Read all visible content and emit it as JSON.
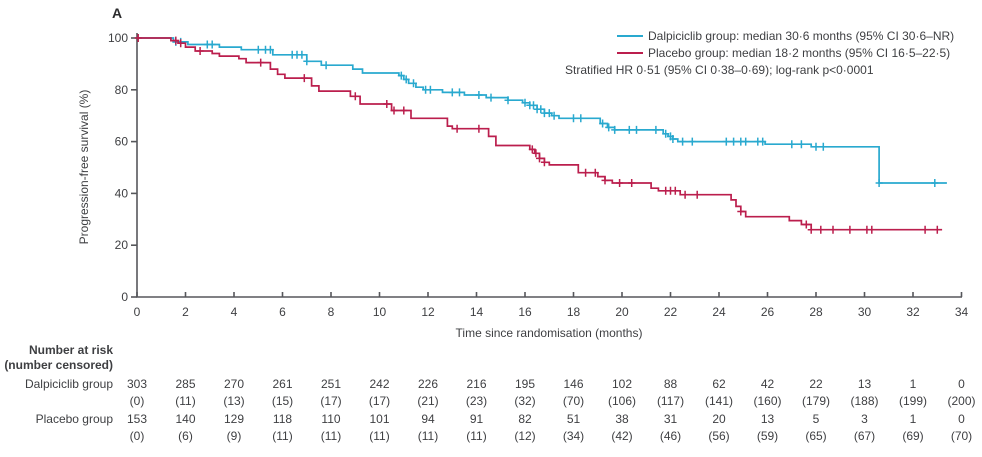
{
  "panel_label": "A",
  "colors": {
    "dalpiciclib": "#29A9CF",
    "placebo": "#BB1E4D",
    "axis": "#56575B",
    "text": "#3E3F42"
  },
  "chart_data": {
    "type": "line",
    "variant": "kaplan-meier-step",
    "title": "",
    "xlabel": "Time since randomisation (months)",
    "ylabel": "Progression-free survival (%)",
    "xlim": [
      0,
      34
    ],
    "ylim": [
      0,
      100
    ],
    "x_ticks": [
      0,
      2,
      4,
      6,
      8,
      10,
      12,
      14,
      16,
      18,
      20,
      22,
      24,
      26,
      28,
      30,
      32,
      34
    ],
    "y_ticks": [
      0,
      20,
      40,
      60,
      80,
      100
    ],
    "grid": false,
    "legend_position": "top-right",
    "series": [
      {
        "name": "Dalpiciclib group",
        "color": "#29A9CF",
        "median_months": "30·6",
        "steps": [
          [
            0,
            100
          ],
          [
            1.5,
            98.5
          ],
          [
            2.1,
            97.5
          ],
          [
            3.4,
            96.5
          ],
          [
            4.3,
            95.5
          ],
          [
            5.6,
            93.5
          ],
          [
            7.0,
            91
          ],
          [
            7.6,
            89.5
          ],
          [
            8.9,
            88
          ],
          [
            9.3,
            86.5
          ],
          [
            10.8,
            85.5
          ],
          [
            11.0,
            84
          ],
          [
            11.2,
            82.5
          ],
          [
            11.5,
            81
          ],
          [
            11.8,
            80
          ],
          [
            12.6,
            79
          ],
          [
            13.5,
            78
          ],
          [
            14.4,
            77
          ],
          [
            15.3,
            76
          ],
          [
            15.9,
            75
          ],
          [
            16.2,
            74
          ],
          [
            16.5,
            72.5
          ],
          [
            16.8,
            71
          ],
          [
            17.1,
            70
          ],
          [
            17.4,
            69
          ],
          [
            19.1,
            67
          ],
          [
            19.4,
            65.5
          ],
          [
            19.7,
            64.5
          ],
          [
            21.7,
            63
          ],
          [
            21.9,
            62
          ],
          [
            22.1,
            61
          ],
          [
            22.3,
            60
          ],
          [
            25.9,
            59
          ],
          [
            27.8,
            58
          ],
          [
            30.6,
            44
          ]
        ],
        "end_time": 33.4,
        "censor_times": [
          1.6,
          1.8,
          2.9,
          3.1,
          5.0,
          5.3,
          5.5,
          6.4,
          6.6,
          6.8,
          7.0,
          7.8,
          10.9,
          11.1,
          11.4,
          11.9,
          12.1,
          13.0,
          13.3,
          14.1,
          14.6,
          15.3,
          16.0,
          16.2,
          16.35,
          16.5,
          16.65,
          16.8,
          17.0,
          17.2,
          18.0,
          18.3,
          19.2,
          19.45,
          19.7,
          20.3,
          20.6,
          21.4,
          21.8,
          22.0,
          22.1,
          22.5,
          22.9,
          24.3,
          24.6,
          24.9,
          25.1,
          25.6,
          25.8,
          27.0,
          27.4,
          28.0,
          28.3,
          30.6,
          32.9
        ]
      },
      {
        "name": "Placebo group",
        "color": "#BB1E4D",
        "median_months": "18·2",
        "steps": [
          [
            0,
            100
          ],
          [
            1.4,
            99
          ],
          [
            1.7,
            98
          ],
          [
            2.0,
            96.5
          ],
          [
            2.4,
            95
          ],
          [
            3.1,
            94
          ],
          [
            3.4,
            93
          ],
          [
            4.2,
            92
          ],
          [
            4.5,
            90.5
          ],
          [
            5.5,
            88
          ],
          [
            5.8,
            86
          ],
          [
            6.1,
            84.5
          ],
          [
            7.2,
            81.5
          ],
          [
            7.5,
            79.5
          ],
          [
            8.8,
            77.5
          ],
          [
            9.2,
            74.5
          ],
          [
            10.5,
            72
          ],
          [
            11.3,
            69
          ],
          [
            12.8,
            66
          ],
          [
            13.0,
            65
          ],
          [
            14.5,
            62
          ],
          [
            14.8,
            58.5
          ],
          [
            16.2,
            57
          ],
          [
            16.4,
            55.5
          ],
          [
            16.6,
            53.5
          ],
          [
            16.8,
            52
          ],
          [
            17.0,
            51
          ],
          [
            18.2,
            48
          ],
          [
            19.0,
            46.5
          ],
          [
            19.3,
            45
          ],
          [
            19.6,
            44
          ],
          [
            21.2,
            42
          ],
          [
            21.5,
            41
          ],
          [
            22.4,
            39.5
          ],
          [
            24.5,
            37.5
          ],
          [
            24.7,
            35
          ],
          [
            24.9,
            33
          ],
          [
            25.1,
            31
          ],
          [
            26.9,
            29.5
          ],
          [
            27.4,
            28
          ],
          [
            27.8,
            26
          ]
        ],
        "end_time": 33.2,
        "censor_times": [
          0.05,
          1.6,
          1.8,
          2.6,
          5.1,
          6.9,
          9.0,
          10.3,
          10.6,
          11.0,
          13.2,
          14.1,
          16.3,
          16.45,
          16.6,
          16.8,
          18.5,
          18.9,
          19.3,
          19.9,
          20.4,
          21.8,
          22.0,
          22.2,
          22.6,
          23.1,
          24.9,
          27.6,
          27.8,
          28.2,
          28.7,
          29.4,
          30.1,
          30.3,
          32.5,
          33.0
        ]
      }
    ],
    "legend": {
      "entries": [
        {
          "label": "Dalpiciclib group: median 30·6 months (95% CI 30·6–NR)"
        },
        {
          "label": "Placebo group: median 18·2 months (95% CI 16·5–22·5)"
        }
      ],
      "note": "Stratified HR 0·51 (95% CI 0·38–0·69); log-rank p<0·0001"
    }
  },
  "risk_table": {
    "header_line1": "Number at risk",
    "header_line2": "(number censored)",
    "times": [
      0,
      2,
      4,
      6,
      8,
      10,
      12,
      14,
      16,
      18,
      20,
      22,
      24,
      26,
      28,
      30,
      32,
      34
    ],
    "rows": [
      {
        "label": "Dalpiciclib group",
        "at_risk": [
          303,
          285,
          270,
          261,
          251,
          242,
          226,
          216,
          195,
          146,
          102,
          88,
          62,
          42,
          22,
          13,
          1,
          0
        ],
        "censored": [
          0,
          11,
          13,
          15,
          17,
          17,
          21,
          23,
          32,
          70,
          106,
          117,
          141,
          160,
          179,
          188,
          199,
          200
        ]
      },
      {
        "label": "Placebo group",
        "at_risk": [
          153,
          140,
          129,
          118,
          110,
          101,
          94,
          91,
          82,
          51,
          38,
          31,
          20,
          13,
          5,
          3,
          1,
          0
        ],
        "censored": [
          0,
          6,
          9,
          11,
          11,
          11,
          11,
          11,
          12,
          34,
          42,
          46,
          56,
          59,
          65,
          67,
          69,
          70
        ]
      }
    ]
  }
}
